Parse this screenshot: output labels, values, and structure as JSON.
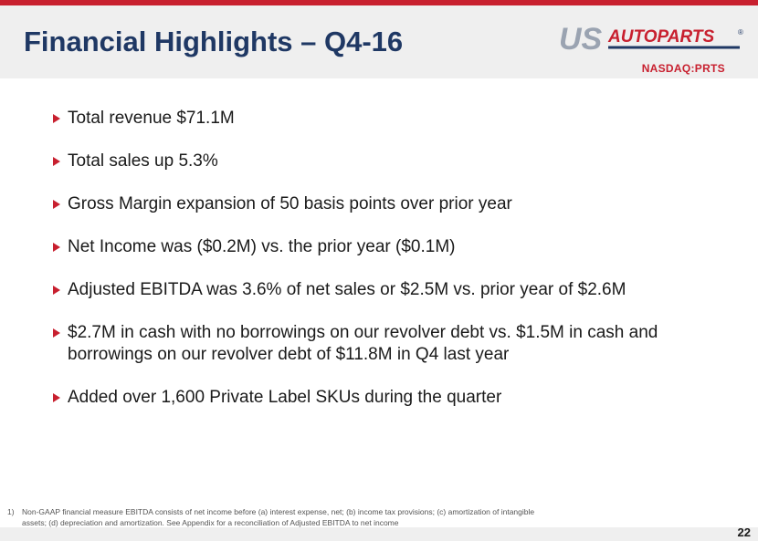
{
  "slide": {
    "title": "Financial Highlights – Q4-16",
    "page_number": "22"
  },
  "logo": {
    "us": "US",
    "autoparts": "AUTOPARTS",
    "registered": "®",
    "ticker": "NASDAQ:PRTS"
  },
  "bullets": [
    "Total revenue $71.1M",
    "Total sales up 5.3%",
    "Gross Margin expansion of 50 basis points over prior year",
    "Net Income was ($0.2M) vs. the prior year ($0.1M)",
    "Adjusted EBITDA was 3.6% of net sales or $2.5M vs. prior year of $2.6M",
    "$2.7M in cash with no borrowings on our revolver debt vs. $1.5M in cash and borrowings on our revolver debt of $11.8M in Q4 last year",
    "Added over 1,600 Private Label SKUs during the quarter"
  ],
  "footnote": {
    "number": "1)",
    "text": "Non-GAAP financial measure EBITDA consists of net income before (a) interest expense, net; (b) income tax provisions; (c) amortization of intangible assets; (d) depreciation and amortization.  See Appendix for a reconciliation of Adjusted EBITDA to net income"
  },
  "colors": {
    "accent_red": "#c8202f",
    "title_navy": "#1f3864",
    "header_gray": "#efefef",
    "logo_gray": "#9aa3b1"
  }
}
